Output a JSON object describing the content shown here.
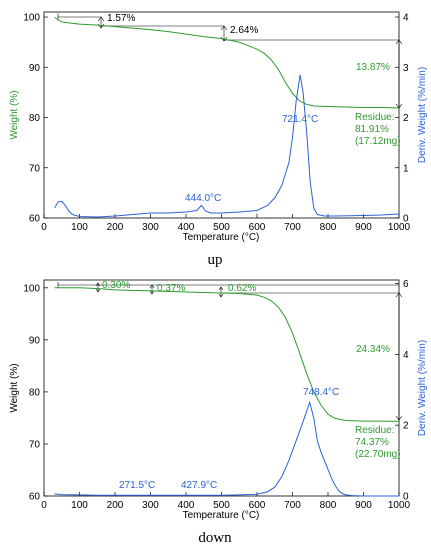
{
  "figure": {
    "captions": [
      "up",
      "down"
    ]
  },
  "colors": {
    "weight": "#2e9a2e",
    "deriv": "#2b62d9",
    "axis_left": "#2e9a2e",
    "axis_right": "#2b62d9",
    "bracket": "#000000"
  },
  "chart_data": [
    {
      "type": "line",
      "panel": "up",
      "caption": "up",
      "xlabel": "Temperature (°C)",
      "ylabel": "Weight (%)",
      "y2label": "Deriv. Weight (%/min)",
      "xlim": [
        0,
        1000
      ],
      "ylim": [
        60,
        101
      ],
      "y2lim": [
        0,
        4.1
      ],
      "xticks": [
        0,
        100,
        200,
        300,
        400,
        500,
        600,
        700,
        800,
        900,
        1000
      ],
      "yticks": [
        60,
        70,
        80,
        90,
        100
      ],
      "y2ticks": [
        0,
        1,
        2,
        3,
        4
      ],
      "series": [
        {
          "axis": "left",
          "x": [
            30,
            50,
            100,
            150,
            200,
            250,
            300,
            350,
            400,
            450,
            500,
            550,
            600,
            620,
            640,
            660,
            680,
            700,
            720,
            740,
            760,
            800,
            850,
            900,
            950,
            1000
          ],
          "y": [
            99.9,
            99.0,
            98.6,
            98.4,
            98.1,
            97.8,
            97.5,
            97.1,
            96.6,
            96.1,
            95.7,
            95.0,
            93.6,
            92.8,
            91.5,
            89.6,
            87.0,
            84.8,
            83.3,
            82.6,
            82.3,
            82.2,
            82.1,
            82.0,
            82.0,
            81.9
          ]
        },
        {
          "axis": "right",
          "x": [
            30,
            40,
            50,
            60,
            70,
            80,
            100,
            150,
            200,
            250,
            300,
            350,
            400,
            430,
            444,
            455,
            470,
            500,
            550,
            600,
            630,
            650,
            670,
            690,
            700,
            710,
            721.4,
            730,
            740,
            750,
            760,
            770,
            790,
            820,
            900,
            950,
            1000
          ],
          "y": [
            0.2,
            0.32,
            0.33,
            0.25,
            0.14,
            0.07,
            0.03,
            0.02,
            0.04,
            0.07,
            0.1,
            0.1,
            0.12,
            0.15,
            0.25,
            0.14,
            0.1,
            0.1,
            0.12,
            0.15,
            0.25,
            0.4,
            0.65,
            1.1,
            1.6,
            2.3,
            2.85,
            2.5,
            1.7,
            0.7,
            0.2,
            0.07,
            0.04,
            0.04,
            0.05,
            0.06,
            0.08
          ]
        }
      ],
      "annotations": [
        {
          "text": "1.57%"
        },
        {
          "text": "2.64%"
        },
        {
          "text": "13.87%"
        },
        {
          "text": "721.4°C"
        },
        {
          "text": "444.0°C"
        },
        {
          "text": "Residue:"
        },
        {
          "text": "81.91%"
        },
        {
          "text": "(17.12mg)"
        }
      ],
      "step_levels": [
        98.4,
        95.8
      ]
    },
    {
      "type": "line",
      "panel": "down",
      "caption": "down",
      "xlabel": "Temperature (°C)",
      "ylabel": "Weight (%)",
      "y2label": "Deriv. Weight (%/min)",
      "xlim": [
        0,
        1000
      ],
      "ylim": [
        60,
        101.5
      ],
      "y2lim": [
        0,
        6.1
      ],
      "xticks": [
        0,
        100,
        200,
        300,
        400,
        500,
        600,
        700,
        800,
        900,
        1000
      ],
      "yticks": [
        60,
        70,
        80,
        90,
        100
      ],
      "y2ticks": [
        0,
        2,
        4,
        6
      ],
      "series": [
        {
          "axis": "left",
          "x": [
            30,
            100,
            160,
            200,
            300,
            400,
            500,
            550,
            600,
            620,
            640,
            660,
            680,
            700,
            720,
            740,
            760,
            780,
            800,
            820,
            850,
            900,
            950,
            1000
          ],
          "y": [
            100,
            100,
            99.8,
            99.6,
            99.4,
            99.2,
            99.0,
            98.9,
            98.6,
            98.2,
            97.5,
            96.3,
            94.3,
            91.3,
            87.5,
            83.5,
            80.0,
            77.5,
            75.7,
            74.9,
            74.5,
            74.4,
            74.4,
            74.37
          ]
        },
        {
          "axis": "right",
          "x": [
            30,
            50,
            100,
            150,
            200,
            271.5,
            300,
            350,
            427.9,
            450,
            500,
            550,
            600,
            630,
            650,
            670,
            690,
            710,
            730,
            748.4,
            760,
            770,
            780,
            790,
            800,
            810,
            820,
            830,
            840,
            850,
            870,
            900,
            950,
            1000
          ],
          "y": [
            0.06,
            0.04,
            0.03,
            0.02,
            0.02,
            0.02,
            0.02,
            0.02,
            0.02,
            0.02,
            0.02,
            0.03,
            0.05,
            0.12,
            0.25,
            0.55,
            1.0,
            1.55,
            2.1,
            2.65,
            2.2,
            1.55,
            1.25,
            1.0,
            0.75,
            0.5,
            0.3,
            0.15,
            0.07,
            0.03,
            0.01,
            0.0,
            0.0,
            0.0
          ]
        }
      ],
      "annotations": [
        {
          "text": "0.30%"
        },
        {
          "text": "0.37%"
        },
        {
          "text": "0.62%"
        },
        {
          "text": "24.34%"
        },
        {
          "text": "748.4°C"
        },
        {
          "text": "271.5°C"
        },
        {
          "text": "427.9°C"
        },
        {
          "text": "Residue:"
        },
        {
          "text": "74.37%"
        },
        {
          "text": "(22.70mg)"
        }
      ],
      "step_levels": [
        99.8,
        99.2,
        98.7
      ]
    }
  ]
}
